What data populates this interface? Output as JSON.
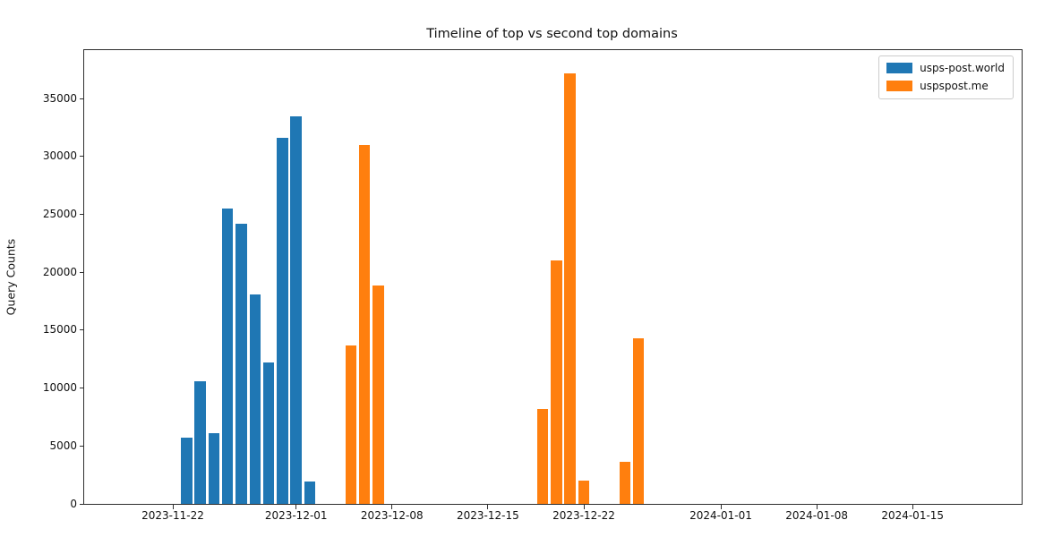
{
  "figure": {
    "title": "Timeline of top vs second top domains",
    "ylabel": "Query Counts"
  },
  "legend": {
    "items": [
      {
        "label": "usps-post.world",
        "color": "#1f77b4"
      },
      {
        "label": "uspspost.me",
        "color": "#ff7f0e"
      }
    ]
  },
  "chart_data": {
    "type": "bar",
    "title": "Timeline of top vs second top domains",
    "xlabel": "",
    "ylabel": "Query Counts",
    "ylim": [
      0,
      39200
    ],
    "xlim": [
      "2023-11-15",
      "2024-01-23"
    ],
    "grid": false,
    "legend_position": "upper right",
    "y_ticks": [
      0,
      5000,
      10000,
      15000,
      20000,
      25000,
      30000,
      35000
    ],
    "y_tick_labels": [
      "0",
      "5000",
      "10000",
      "15000",
      "20000",
      "25000",
      "30000",
      "35000"
    ],
    "x_tick_dates": [
      "2023-11-22",
      "2023-12-01",
      "2023-12-08",
      "2023-12-15",
      "2023-12-22",
      "2024-01-01",
      "2024-01-08",
      "2024-01-15"
    ],
    "series": [
      {
        "name": "usps-post.world",
        "color": "#1f77b4",
        "points": [
          {
            "date": "2023-11-23",
            "value": 5700
          },
          {
            "date": "2023-11-24",
            "value": 10600
          },
          {
            "date": "2023-11-25",
            "value": 6100
          },
          {
            "date": "2023-11-26",
            "value": 25500
          },
          {
            "date": "2023-11-27",
            "value": 24200
          },
          {
            "date": "2023-11-28",
            "value": 18100
          },
          {
            "date": "2023-11-29",
            "value": 12200
          },
          {
            "date": "2023-11-30",
            "value": 31600
          },
          {
            "date": "2023-12-01",
            "value": 33500
          },
          {
            "date": "2023-12-02",
            "value": 1900
          }
        ]
      },
      {
        "name": "uspspost.me",
        "color": "#ff7f0e",
        "points": [
          {
            "date": "2023-12-05",
            "value": 13700
          },
          {
            "date": "2023-12-06",
            "value": 31000
          },
          {
            "date": "2023-12-07",
            "value": 18900
          },
          {
            "date": "2023-12-19",
            "value": 8200
          },
          {
            "date": "2023-12-20",
            "value": 21000
          },
          {
            "date": "2023-12-21",
            "value": 37200
          },
          {
            "date": "2023-12-22",
            "value": 2000
          },
          {
            "date": "2023-12-25",
            "value": 3600
          },
          {
            "date": "2023-12-26",
            "value": 14300
          }
        ]
      }
    ]
  }
}
